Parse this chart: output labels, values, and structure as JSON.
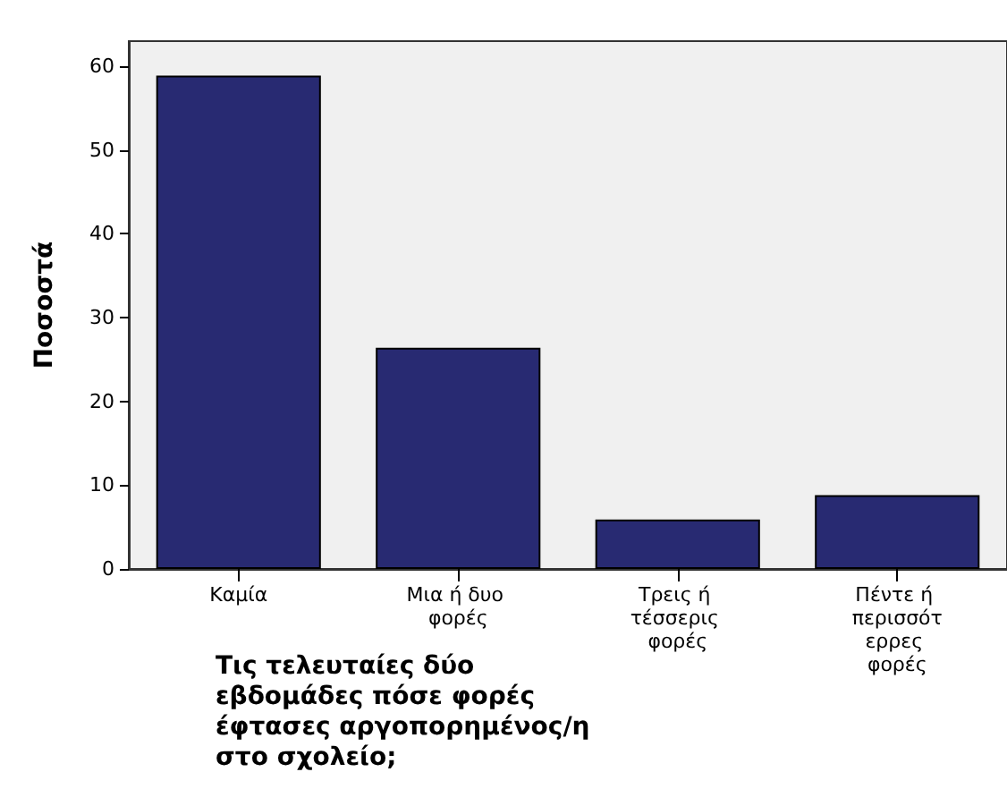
{
  "chart_data": {
    "type": "bar",
    "xlabel": "Τις τελευταίες δύο εβδομάδες πόσε φορές έφτασες αργοπορημένος/η στο σχολείο;",
    "ylabel": "Ποσοστά",
    "categories": [
      "Καμία",
      "Μια ή δυο φορές",
      "Τρεις ή τέσσερις φορές",
      "Πέντε ή περισσότερρες φορές"
    ],
    "values": [
      58.9,
      26.4,
      5.9,
      8.8
    ],
    "color": "#282a72",
    "ylim": [
      0,
      63
    ],
    "yticks": [
      0,
      10,
      20,
      30,
      40,
      50,
      60
    ],
    "grid": false
  }
}
